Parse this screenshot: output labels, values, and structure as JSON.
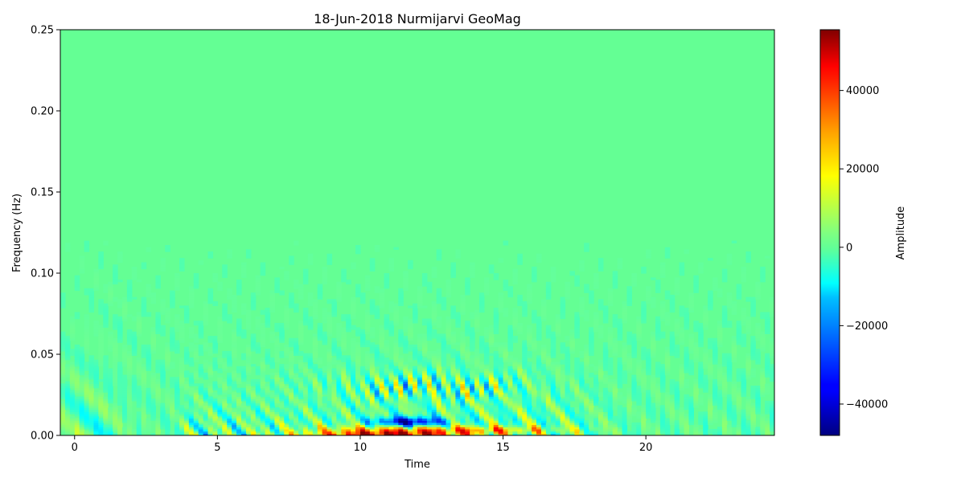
{
  "chart_data": {
    "type": "heatmap",
    "title": "18-Jun-2018 Nurmijarvi GeoMag",
    "xlabel": "Time",
    "ylabel": "Frequency (Hz)",
    "xlim": [
      -0.5,
      24.5
    ],
    "ylim": [
      0.0,
      0.25
    ],
    "x_ticks": [
      0,
      5,
      10,
      15,
      20
    ],
    "x_tick_labels": [
      "0",
      "5",
      "10",
      "15",
      "20"
    ],
    "y_ticks": [
      0.0,
      0.05,
      0.1,
      0.15,
      0.2,
      0.25
    ],
    "y_tick_labels": [
      "0.00",
      "0.05",
      "0.10",
      "0.15",
      "0.20",
      "0.25"
    ],
    "grid": false,
    "colormap": "jet",
    "colorbar": {
      "label": "Amplitude",
      "vmin": -48000,
      "vmax": 55500,
      "ticks": [
        -40000,
        -20000,
        0,
        20000,
        40000
      ],
      "tick_labels": [
        "−40000",
        "−20000",
        "0",
        "20000",
        "40000"
      ],
      "placement": "right"
    },
    "features": [
      {
        "x_range": [
          3.8,
          17.5
        ],
        "y_range": [
          0.0,
          0.04
        ],
        "description": "strong oscillating amplitudes"
      },
      {
        "x_range": [
          8.5,
          14.5
        ],
        "y_range": [
          0.0,
          0.006
        ],
        "peak_amplitude": 55000
      },
      {
        "x_range": [
          10.5,
          12.5
        ],
        "y_range": [
          0.006,
          0.01
        ],
        "peak_amplitude": -45000
      }
    ]
  }
}
